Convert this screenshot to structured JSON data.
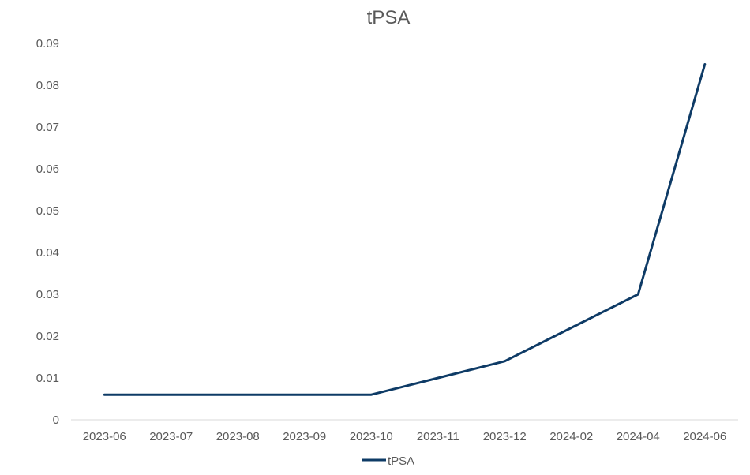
{
  "chart_data": {
    "type": "line",
    "title": "tPSA",
    "xlabel": "",
    "ylabel": "",
    "categories": [
      "2023-06",
      "2023-07",
      "2023-08",
      "2023-09",
      "2023-10",
      "2023-11",
      "2023-12",
      "2024-02",
      "2024-04",
      "2024-06"
    ],
    "ylim": [
      0,
      0.09
    ],
    "yticks": [
      "0",
      "0.01",
      "0.02",
      "0.03",
      "0.04",
      "0.05",
      "0.06",
      "0.07",
      "0.08",
      "0.09"
    ],
    "grid": false,
    "legend_position": "bottom",
    "series": [
      {
        "name": "tPSA",
        "color": "#0e3b66",
        "values": [
          0.006,
          0.006,
          0.006,
          0.006,
          0.006,
          0.01,
          0.014,
          0.022,
          0.03,
          0.085
        ]
      }
    ]
  }
}
